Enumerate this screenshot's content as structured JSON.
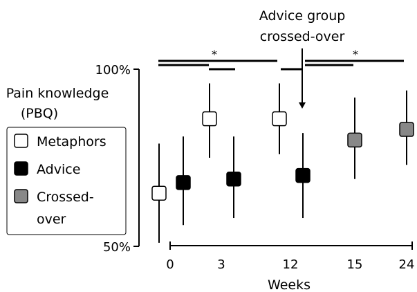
{
  "chart_data": {
    "type": "scatter",
    "annotation": [
      "Advice group",
      "crossed-over"
    ],
    "ylabel": [
      "Pain knowledge",
      "(PBQ)"
    ],
    "xlabel": "Weeks",
    "y_ticks": [
      "100%",
      "50%"
    ],
    "ylim": [
      50,
      100
    ],
    "x_ticks": [
      "0",
      "3",
      "12",
      "15",
      "24"
    ],
    "significance_marks": [
      "*",
      "*"
    ],
    "legend": {
      "placement": "left",
      "entries": [
        {
          "label": [
            "Metaphors"
          ],
          "color": "#ffffff"
        },
        {
          "label": [
            "Advice"
          ],
          "color": "#000000"
        },
        {
          "label": [
            "Crossed-",
            "over"
          ],
          "color": "#888888"
        }
      ]
    },
    "series": [
      {
        "name": "Metaphors",
        "color": "#ffffff",
        "points": [
          {
            "x": "0",
            "y": 65,
            "lower": 51,
            "upper": 79
          },
          {
            "x": "3",
            "y": 86,
            "lower": 75,
            "upper": 96
          },
          {
            "x": "12",
            "y": 86,
            "lower": 76,
            "upper": 96
          }
        ]
      },
      {
        "name": "Advice",
        "color": "#000000",
        "points": [
          {
            "x": "0",
            "y": 68,
            "lower": 56,
            "upper": 81
          },
          {
            "x": "3",
            "y": 69,
            "lower": 58,
            "upper": 81
          },
          {
            "x": "12",
            "y": 70,
            "lower": 58,
            "upper": 82
          }
        ]
      },
      {
        "name": "Crossed-over",
        "color": "#888888",
        "points": [
          {
            "x": "15",
            "y": 80,
            "lower": 69,
            "upper": 92
          },
          {
            "x": "24",
            "y": 83,
            "lower": 73,
            "upper": 94
          }
        ]
      }
    ]
  }
}
